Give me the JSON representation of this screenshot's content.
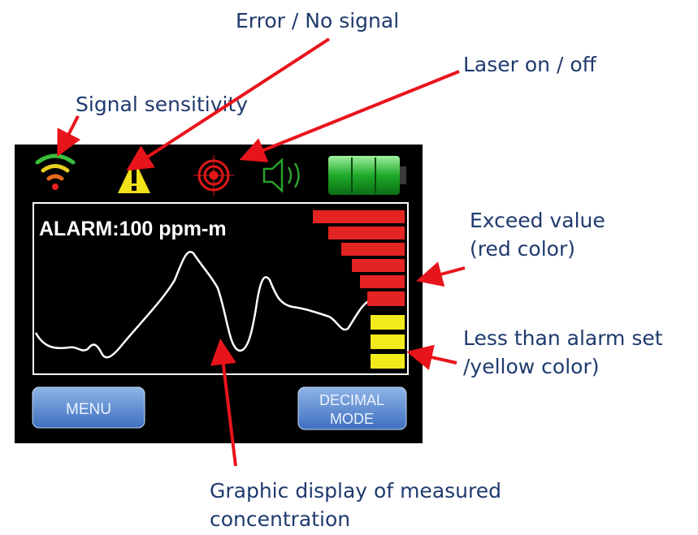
{
  "annotations": {
    "error": "Error / No signal",
    "laser": "Laser on / off",
    "signal": "Signal sensitivity",
    "exceed": [
      "Exceed value",
      "(red color)"
    ],
    "less": [
      "Less than alarm set",
      "/yellow color)"
    ],
    "graphic": [
      "Graphic display of measured",
      "concentration"
    ]
  },
  "screen": {
    "alarm": "ALARM:100 ppm-m",
    "buttons": [
      [
        "MENU"
      ],
      [
        "DECIMAL",
        "MODE"
      ]
    ]
  }
}
